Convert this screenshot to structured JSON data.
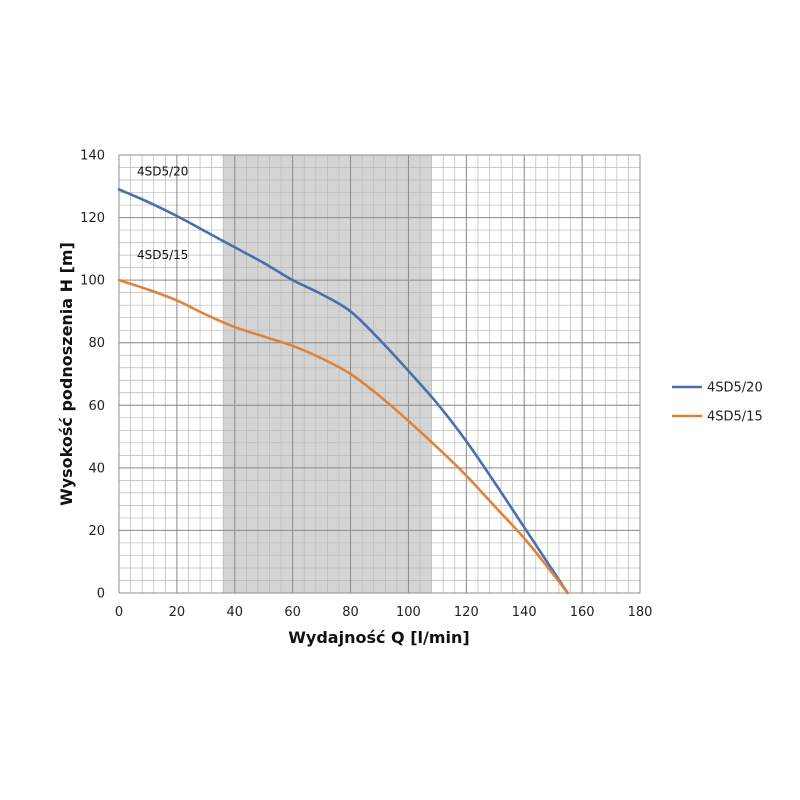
{
  "chart_data": {
    "type": "line",
    "xlabel": "Wydajność Q [l/min]",
    "ylabel": "Wysokość podnoszenia H [m]",
    "xlim": [
      0,
      180
    ],
    "ylim": [
      0,
      140
    ],
    "x_major_ticks": [
      0,
      20,
      40,
      60,
      80,
      100,
      120,
      140,
      160,
      180
    ],
    "y_major_ticks": [
      0,
      20,
      40,
      60,
      80,
      100,
      120,
      140
    ],
    "grid": true,
    "minor_grid": true,
    "highlight_band": {
      "x_from": 36,
      "x_to": 108,
      "color": "#d4d4d4"
    },
    "legend_position": "right",
    "series": [
      {
        "name": "4SD5/20",
        "color": "#4a6fad",
        "x": [
          0,
          10,
          20,
          30,
          40,
          50,
          60,
          70,
          80,
          90,
          100,
          110,
          120,
          130,
          140,
          150,
          155
        ],
        "y": [
          129,
          125,
          120.5,
          115.5,
          110.5,
          105.5,
          100,
          95.5,
          90,
          81,
          71,
          60.5,
          48.5,
          35,
          21,
          7,
          0
        ]
      },
      {
        "name": "4SD5/15",
        "color": "#e0833a",
        "x": [
          0,
          10,
          20,
          30,
          40,
          50,
          60,
          70,
          80,
          90,
          100,
          110,
          120,
          130,
          140,
          150,
          155
        ],
        "y": [
          100,
          97,
          93.5,
          89,
          85,
          82,
          79,
          75,
          70,
          63,
          55,
          46.5,
          37.5,
          27.5,
          17.5,
          6,
          0
        ]
      }
    ]
  }
}
